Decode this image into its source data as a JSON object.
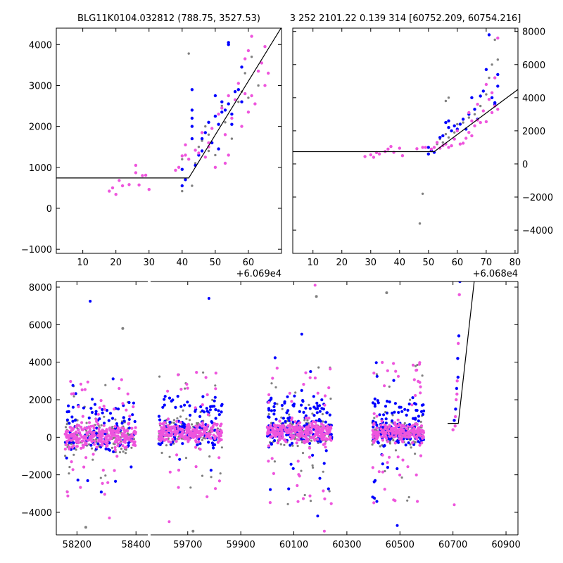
{
  "chart_data": [
    {
      "type": "scatter",
      "title": "BLG11K0104.032812 (788.75, 3527.53)",
      "x_offset_label": "+6.069e4",
      "xlim": [
        2,
        70
      ],
      "ylim": [
        -1100,
        4400
      ],
      "x_ticks": [
        10,
        20,
        30,
        40,
        50,
        60
      ],
      "y_ticks": [
        -1000,
        0,
        1000,
        2000,
        3000,
        4000
      ],
      "y_tick_labels": [
        "−1000",
        "0",
        "1000",
        "2000",
        "3000",
        "4000"
      ],
      "y_axis_side": "left",
      "model_line": [
        [
          2,
          740
        ],
        [
          42,
          740
        ],
        [
          70,
          4420
        ]
      ],
      "series": [
        {
          "color": "#808080",
          "points": [
            [
              40,
              420
            ],
            [
              40,
              1200
            ],
            [
              42,
              3780
            ],
            [
              43,
              550
            ],
            [
              44,
              1100
            ],
            [
              45,
              1500
            ],
            [
              46,
              1650
            ],
            [
              47,
              2000
            ],
            [
              48,
              1800
            ],
            [
              48,
              1400
            ],
            [
              50,
              1300
            ],
            [
              52,
              2500
            ],
            [
              53,
              2100
            ],
            [
              55,
              1700
            ],
            [
              55,
              2300
            ],
            [
              57,
              2600
            ],
            [
              58,
              2850
            ],
            [
              59,
              3300
            ],
            [
              60,
              2700
            ],
            [
              61,
              3700
            ],
            [
              63,
              3000
            ]
          ]
        },
        {
          "color": "#0000ff",
          "points": [
            [
              40,
              950
            ],
            [
              40,
              550
            ],
            [
              41,
              700
            ],
            [
              43,
              1700
            ],
            [
              43,
              2000
            ],
            [
              43,
              2200
            ],
            [
              43,
              2400
            ],
            [
              43,
              2900
            ],
            [
              44,
              1050
            ],
            [
              45,
              1300
            ],
            [
              46,
              1400
            ],
            [
              46,
              1700
            ],
            [
              47,
              1850
            ],
            [
              48,
              2100
            ],
            [
              49,
              1600
            ],
            [
              50,
              2250
            ],
            [
              50,
              2750
            ],
            [
              51,
              1450
            ],
            [
              51,
              2050
            ],
            [
              52,
              2350
            ],
            [
              52,
              2600
            ],
            [
              53,
              2400
            ],
            [
              54,
              2550
            ],
            [
              54,
              4000
            ],
            [
              54,
              4050
            ],
            [
              55,
              2050
            ],
            [
              55,
              2300
            ],
            [
              56,
              2850
            ],
            [
              57,
              2900
            ],
            [
              58,
              3450
            ],
            [
              58,
              2600
            ]
          ]
        },
        {
          "color": "#ee55dd",
          "points": [
            [
              18,
              420
            ],
            [
              19,
              500
            ],
            [
              20,
              340
            ],
            [
              21,
              680
            ],
            [
              22,
              550
            ],
            [
              24,
              580
            ],
            [
              26,
              1050
            ],
            [
              26,
              870
            ],
            [
              27,
              570
            ],
            [
              28,
              800
            ],
            [
              29,
              810
            ],
            [
              30,
              460
            ],
            [
              38,
              930
            ],
            [
              39,
              1000
            ],
            [
              40,
              1280
            ],
            [
              41,
              1550
            ],
            [
              41,
              1300
            ],
            [
              42,
              1200
            ],
            [
              44,
              1420
            ],
            [
              45,
              1350
            ],
            [
              46,
              1850
            ],
            [
              47,
              1250
            ],
            [
              48,
              1600
            ],
            [
              48,
              1500
            ],
            [
              49,
              1950
            ],
            [
              50,
              1000
            ],
            [
              51,
              2300
            ],
            [
              52,
              2450
            ],
            [
              53,
              1800
            ],
            [
              53,
              1100
            ],
            [
              54,
              1300
            ],
            [
              54,
              2750
            ],
            [
              55,
              2200
            ],
            [
              56,
              2650
            ],
            [
              57,
              3050
            ],
            [
              58,
              2000
            ],
            [
              59,
              2800
            ],
            [
              59,
              3650
            ],
            [
              60,
              2350
            ],
            [
              60,
              3850
            ],
            [
              61,
              2750
            ],
            [
              61,
              4200
            ],
            [
              62,
              2550
            ],
            [
              63,
              3350
            ],
            [
              64,
              3550
            ],
            [
              65,
              3000
            ],
            [
              65,
              3950
            ],
            [
              66,
              3300
            ]
          ]
        }
      ]
    },
    {
      "type": "scatter",
      "title": "3 252 2101.22 0.139 314 [60752.209, 60754.216]",
      "x_offset_label": "+6.068e4",
      "xlim": [
        3,
        81
      ],
      "ylim": [
        -5400,
        8200
      ],
      "x_ticks": [
        10,
        20,
        30,
        40,
        50,
        60,
        70,
        80
      ],
      "y_ticks": [
        -4000,
        -2000,
        0,
        2000,
        4000,
        6000,
        8000
      ],
      "y_tick_labels": [
        "−4000",
        "−2000",
        "0",
        "2000",
        "4000",
        "6000",
        "8000"
      ],
      "y_axis_side": "right",
      "model_line": [
        [
          3,
          740
        ],
        [
          52,
          740
        ],
        [
          81,
          4500
        ]
      ],
      "series": [
        {
          "color": "#808080",
          "points": [
            [
              47,
              -3600
            ],
            [
              48,
              -1800
            ],
            [
              50,
              600
            ],
            [
              51,
              800
            ],
            [
              52,
              1000
            ],
            [
              53,
              1200
            ],
            [
              54,
              1500
            ],
            [
              55,
              1300
            ],
            [
              56,
              1800
            ],
            [
              57,
              1600
            ],
            [
              58,
              2000
            ],
            [
              59,
              1900
            ],
            [
              60,
              2400
            ],
            [
              62,
              2500
            ],
            [
              64,
              2800
            ],
            [
              66,
              3000
            ],
            [
              68,
              3500
            ],
            [
              70,
              4200
            ],
            [
              71,
              5200
            ],
            [
              72,
              6000
            ],
            [
              73,
              7500
            ],
            [
              74,
              6300
            ],
            [
              56,
              3800
            ],
            [
              57,
              4000
            ]
          ]
        },
        {
          "color": "#0000ff",
          "points": [
            [
              50,
              1000
            ],
            [
              50,
              600
            ],
            [
              51,
              800
            ],
            [
              52,
              700
            ],
            [
              54,
              1600
            ],
            [
              55,
              1700
            ],
            [
              56,
              2500
            ],
            [
              57,
              2200
            ],
            [
              57,
              2600
            ],
            [
              58,
              2000
            ],
            [
              59,
              2300
            ],
            [
              60,
              2100
            ],
            [
              61,
              2400
            ],
            [
              62,
              2700
            ],
            [
              63,
              2100
            ],
            [
              64,
              3000
            ],
            [
              65,
              4000
            ],
            [
              66,
              3300
            ],
            [
              67,
              2700
            ],
            [
              68,
              4100
            ],
            [
              69,
              4400
            ],
            [
              70,
              5700
            ],
            [
              71,
              7800
            ],
            [
              72,
              4000
            ],
            [
              73,
              3700
            ],
            [
              74,
              5400
            ],
            [
              74,
              4700
            ],
            [
              73,
              3600
            ]
          ]
        },
        {
          "color": "#ee55dd",
          "points": [
            [
              28,
              450
            ],
            [
              30,
              550
            ],
            [
              31,
              400
            ],
            [
              32,
              680
            ],
            [
              33,
              600
            ],
            [
              35,
              750
            ],
            [
              36,
              900
            ],
            [
              37,
              1050
            ],
            [
              38,
              700
            ],
            [
              40,
              950
            ],
            [
              41,
              500
            ],
            [
              46,
              920
            ],
            [
              48,
              1000
            ],
            [
              49,
              1000
            ],
            [
              51,
              900
            ],
            [
              52,
              1000
            ],
            [
              53,
              1300
            ],
            [
              54,
              950
            ],
            [
              55,
              1100
            ],
            [
              56,
              1200
            ],
            [
              57,
              1000
            ],
            [
              58,
              1100
            ],
            [
              59,
              1500
            ],
            [
              60,
              2000
            ],
            [
              61,
              1200
            ],
            [
              62,
              1250
            ],
            [
              63,
              1550
            ],
            [
              64,
              1900
            ],
            [
              64,
              3100
            ],
            [
              65,
              1700
            ],
            [
              65,
              2600
            ],
            [
              66,
              2300
            ],
            [
              67,
              2650
            ],
            [
              67,
              3600
            ],
            [
              68,
              2500
            ],
            [
              69,
              3200
            ],
            [
              70,
              2550
            ],
            [
              70,
              4800
            ],
            [
              71,
              3900
            ],
            [
              72,
              3100
            ],
            [
              73,
              5200
            ],
            [
              73,
              3500
            ],
            [
              74,
              3300
            ],
            [
              74,
              7600
            ],
            [
              72,
              4300
            ]
          ]
        }
      ]
    },
    {
      "type": "scatter",
      "title": "",
      "broken_x_axis": true,
      "ylim": [
        -5200,
        8300
      ],
      "y_ticks": [
        -4000,
        -2000,
        0,
        2000,
        4000,
        6000,
        8000
      ],
      "y_tick_labels": [
        "−4000",
        "−2000",
        "0",
        "2000",
        "4000",
        "6000",
        "8000"
      ],
      "segments": [
        {
          "xlim": [
            58130,
            58440
          ],
          "x_ticks": [
            58200,
            58400
          ]
        },
        {
          "xlim": [
            59560,
            60945
          ],
          "x_ticks": [
            59700,
            59900,
            60100,
            60300,
            60500,
            60700,
            60900
          ]
        }
      ],
      "model_line": [
        [
          60680,
          740
        ],
        [
          60720,
          740
        ],
        [
          60780,
          8300
        ]
      ],
      "clusters": [
        {
          "x_range": [
            58160,
            58400
          ],
          "y_center": 0,
          "y_spread": 900,
          "tail": 3200,
          "counts": [
            140,
            120,
            280
          ]
        },
        {
          "x_range": [
            59590,
            59830
          ],
          "y_center": 300,
          "y_spread": 700,
          "tail": 3500,
          "counts": [
            120,
            130,
            240
          ]
        },
        {
          "x_range": [
            60000,
            60245
          ],
          "y_center": 300,
          "y_spread": 750,
          "tail": 4000,
          "counts": [
            140,
            170,
            260
          ]
        },
        {
          "x_range": [
            60395,
            60590
          ],
          "y_center": 250,
          "y_spread": 700,
          "tail": 3800,
          "counts": [
            120,
            150,
            230
          ]
        }
      ],
      "rise_points": [
        [
          60700,
          400
        ],
        [
          60705,
          900
        ],
        [
          60708,
          600
        ],
        [
          60710,
          1500
        ],
        [
          60712,
          2000
        ],
        [
          60714,
          2600
        ],
        [
          60716,
          3000
        ],
        [
          60718,
          4200
        ],
        [
          60720,
          5000
        ],
        [
          60722,
          5400
        ],
        [
          60724,
          7600
        ],
        [
          60726,
          8300
        ],
        [
          60715,
          2300
        ],
        [
          60719,
          3200
        ],
        [
          60709,
          1100
        ]
      ],
      "outliers": [
        [
          58230,
          -4800
        ],
        [
          58245,
          7250
        ],
        [
          58310,
          -4300
        ],
        [
          58355,
          5800
        ],
        [
          59780,
          7400
        ],
        [
          59630,
          -4500
        ],
        [
          59720,
          -5000
        ],
        [
          60130,
          5500
        ],
        [
          60180,
          8100
        ],
        [
          60185,
          7500
        ],
        [
          60190,
          -4200
        ],
        [
          60215,
          -5000
        ],
        [
          60450,
          7700
        ],
        [
          60490,
          -4700
        ],
        [
          60705,
          -3600
        ]
      ]
    }
  ],
  "colors": {
    "grey": "#808080",
    "blue": "#0000ff",
    "magenta": "#ee55dd",
    "line": "#000000"
  }
}
